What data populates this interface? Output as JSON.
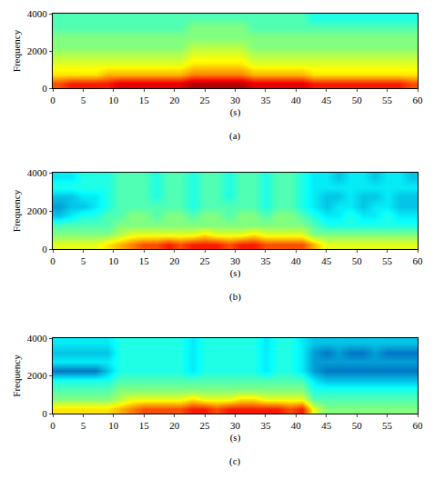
{
  "chart_data": [
    {
      "type": "heatmap",
      "caption": "(a)",
      "xlabel": "(s)",
      "ylabel": "Frequency",
      "x": [
        1,
        3,
        5,
        7,
        9,
        11,
        13,
        15,
        17,
        19,
        21,
        23,
        25,
        27,
        29,
        31,
        33,
        35,
        37,
        39,
        41,
        43,
        45,
        47,
        49,
        51,
        53,
        55,
        57,
        59
      ],
      "y": [
        250,
        750,
        1250,
        1750,
        2250,
        2750,
        3250,
        3750
      ],
      "cells": [
        [
          8,
          8.5,
          8.5,
          8.5,
          8.5,
          9,
          9,
          9,
          9,
          9,
          9,
          9.5,
          9.5,
          9.5,
          9.5,
          9.5,
          9,
          9,
          9,
          9,
          9,
          8.5,
          8.5,
          8.5,
          8.5,
          8.5,
          8.5,
          8.5,
          8.5,
          8
        ],
        [
          6.5,
          6.5,
          6.5,
          6.5,
          7,
          7,
          7,
          7,
          7,
          7,
          7,
          7.5,
          7.5,
          7.5,
          7.5,
          7.5,
          7,
          7,
          7,
          7,
          7,
          6.5,
          6.5,
          6.5,
          6.5,
          6.5,
          6.5,
          6.5,
          6.5,
          6.5
        ],
        [
          6,
          6,
          6,
          6,
          6,
          6,
          6,
          6,
          6,
          6,
          6,
          6.5,
          6.5,
          6.5,
          6.5,
          6.5,
          6,
          6,
          6,
          6,
          6,
          6,
          6,
          6,
          6,
          6,
          6,
          6,
          6,
          6
        ],
        [
          5.5,
          5.5,
          5.5,
          5.5,
          5.5,
          5.5,
          5.5,
          5.5,
          5.5,
          5.5,
          5.5,
          6,
          6,
          6,
          6,
          6,
          5.5,
          5.5,
          5.5,
          5.5,
          5.5,
          5.5,
          5.5,
          5.5,
          5.5,
          5.5,
          5.5,
          5.5,
          5.5,
          5.5
        ],
        [
          5,
          5,
          5,
          5,
          5,
          5,
          5,
          5,
          5,
          5,
          5,
          5.5,
          5.5,
          5.5,
          5.5,
          5.5,
          5,
          5,
          5,
          5,
          5,
          5,
          5,
          5,
          5,
          5,
          5,
          5,
          5,
          5
        ],
        [
          5,
          5,
          5,
          5,
          5,
          5,
          5,
          5,
          5,
          5,
          5,
          5,
          5,
          5,
          5,
          5,
          5,
          5,
          5,
          5,
          5,
          5,
          5,
          5,
          5,
          5,
          5,
          5,
          5,
          5
        ],
        [
          4.5,
          4.5,
          4.5,
          4.5,
          4.5,
          4.5,
          4.5,
          4.5,
          4.5,
          4.5,
          4.5,
          5,
          5,
          5,
          5,
          5,
          4.5,
          4.5,
          4.5,
          4.5,
          4.5,
          4.5,
          4.5,
          4.5,
          4.5,
          4.5,
          4.5,
          4.5,
          4.5,
          4.5
        ],
        [
          4.5,
          4.5,
          4.5,
          4.5,
          4.5,
          4.5,
          4.5,
          4.5,
          4.5,
          4.5,
          4.5,
          4.5,
          4.5,
          4.5,
          4.5,
          4.5,
          4.5,
          4.5,
          4.5,
          4.5,
          4.5,
          4,
          4,
          4,
          4,
          4,
          4,
          4,
          4,
          4
        ]
      ],
      "color_range": [
        0,
        10
      ],
      "xlim": [
        0,
        60
      ],
      "xticks": [
        0,
        5,
        10,
        15,
        20,
        25,
        30,
        35,
        40,
        45,
        50,
        55,
        60
      ],
      "ylim": [
        0,
        4000
      ],
      "yticks": [
        0,
        2000,
        4000
      ]
    },
    {
      "type": "heatmap",
      "caption": "(b)",
      "xlabel": "(s)",
      "ylabel": "Frequency",
      "x": [
        1,
        3,
        5,
        7,
        9,
        11,
        13,
        15,
        17,
        19,
        21,
        23,
        25,
        27,
        29,
        31,
        33,
        35,
        37,
        39,
        41,
        43,
        45,
        47,
        49,
        51,
        53,
        55,
        57,
        59
      ],
      "y": [
        250,
        750,
        1250,
        1750,
        2250,
        2750,
        3250,
        3750
      ],
      "cells": [
        [
          6,
          6,
          6,
          6,
          6.5,
          7,
          7.5,
          8,
          8,
          8.5,
          8,
          8.5,
          8.5,
          8.5,
          8,
          8.5,
          8.5,
          8,
          8,
          8,
          8,
          7,
          6,
          6,
          6,
          6,
          6,
          6,
          6,
          6
        ],
        [
          5,
          5,
          5,
          5,
          5,
          5.5,
          6,
          6,
          6,
          6,
          6,
          6,
          6.5,
          6,
          6,
          6,
          6.5,
          6,
          6,
          6,
          6,
          5,
          5,
          5,
          5,
          5,
          5,
          5,
          5,
          5
        ],
        [
          4.5,
          4.5,
          4.5,
          4.5,
          4.5,
          5,
          5,
          5,
          5,
          5,
          5,
          5,
          5,
          5,
          5,
          5,
          5,
          5,
          5,
          5,
          5,
          4.5,
          4,
          4,
          4,
          4,
          4,
          4,
          4,
          4
        ],
        [
          3,
          3.5,
          4,
          4,
          4.5,
          4.5,
          5,
          5,
          4.5,
          5,
          5,
          4.5,
          5,
          5,
          4.5,
          5,
          5,
          4.5,
          5,
          5,
          4.5,
          4,
          3.5,
          3.5,
          4,
          3.5,
          3.5,
          4,
          3.5,
          3.5
        ],
        [
          2.5,
          3,
          3,
          3.5,
          4,
          4.5,
          4.5,
          4.5,
          4.5,
          4.5,
          4.5,
          4,
          4.5,
          4.5,
          4.5,
          4.5,
          4.5,
          4,
          4.5,
          4.5,
          4,
          3.5,
          3,
          3.5,
          3.5,
          3,
          3.5,
          3.5,
          3,
          3
        ],
        [
          3,
          3,
          3.5,
          3.5,
          4,
          4.5,
          4.5,
          4.5,
          4,
          4.5,
          4.5,
          4,
          4.5,
          4.5,
          4,
          4.5,
          4.5,
          4,
          4.5,
          4.5,
          4,
          3.5,
          3,
          3,
          3.5,
          3,
          3,
          3.5,
          3,
          3
        ],
        [
          4,
          4,
          4,
          4,
          4,
          4.5,
          4.5,
          4.5,
          4,
          4.5,
          4.5,
          4,
          4.5,
          4.5,
          4,
          4.5,
          4.5,
          4,
          4.5,
          4.5,
          4,
          3.5,
          3.5,
          3.5,
          3.5,
          3.5,
          3.5,
          3.5,
          3.5,
          3.5
        ],
        [
          3.5,
          3.5,
          4,
          4,
          4,
          4.5,
          4.5,
          4.5,
          4,
          4.5,
          4.5,
          4,
          4.5,
          4.5,
          4,
          4.5,
          4.5,
          4,
          4.5,
          4.5,
          4,
          3.5,
          3.5,
          3,
          3.5,
          3.5,
          3,
          3.5,
          3.5,
          3
        ]
      ],
      "color_range": [
        0,
        10
      ],
      "xlim": [
        0,
        60
      ],
      "xticks": [
        0,
        5,
        10,
        15,
        20,
        25,
        30,
        35,
        40,
        45,
        50,
        55,
        60
      ],
      "ylim": [
        0,
        4000
      ],
      "yticks": [
        0,
        2000,
        4000
      ]
    },
    {
      "type": "heatmap",
      "caption": "(c)",
      "xlabel": "(s)",
      "ylabel": "Frequency",
      "x": [
        1,
        3,
        5,
        7,
        9,
        11,
        13,
        15,
        17,
        19,
        21,
        23,
        25,
        27,
        29,
        31,
        33,
        35,
        37,
        39,
        41,
        43,
        45,
        47,
        49,
        51,
        53,
        55,
        57,
        59
      ],
      "y": [
        250,
        750,
        1250,
        1750,
        2250,
        2750,
        3250,
        3750
      ],
      "cells": [
        [
          6.5,
          6.5,
          6.5,
          6.5,
          6.5,
          7,
          7.5,
          8,
          8,
          8,
          8,
          8.5,
          8.5,
          8,
          8.5,
          8.5,
          8.5,
          8.5,
          8.5,
          8,
          8.5,
          6,
          5,
          5,
          5,
          5,
          5,
          5,
          5,
          5
        ],
        [
          5,
          5,
          5,
          5,
          5,
          5.5,
          6,
          6,
          6,
          6,
          6,
          6.5,
          6,
          6,
          6,
          6.5,
          6.5,
          6,
          6,
          6,
          6,
          4.5,
          4.5,
          4.5,
          4.5,
          4.5,
          4.5,
          4.5,
          4.5,
          4.5
        ],
        [
          4.5,
          4.5,
          4.5,
          4.5,
          4.5,
          5,
          5,
          5,
          5,
          5,
          5,
          5,
          5,
          5,
          5,
          5,
          5,
          5,
          5,
          5,
          5,
          4,
          4,
          4,
          4,
          4,
          4,
          4,
          4,
          4
        ],
        [
          4,
          4,
          4,
          4,
          4,
          4.5,
          4.5,
          4.5,
          4.5,
          4.5,
          4.5,
          4.5,
          4.5,
          4.5,
          4.5,
          4.5,
          4.5,
          4.5,
          4.5,
          4.5,
          4.5,
          3.5,
          3,
          3,
          3,
          3,
          3,
          3,
          3,
          3
        ],
        [
          2,
          2,
          2,
          2,
          3,
          4,
          4,
          4,
          4,
          4,
          4,
          3.5,
          4,
          4,
          4,
          4,
          4,
          3.5,
          4,
          4,
          3.5,
          2.5,
          2,
          2,
          2,
          2,
          2,
          2,
          2,
          2
        ],
        [
          3.5,
          3.5,
          3.5,
          3.5,
          3.5,
          4,
          4,
          4,
          4,
          4,
          4,
          3.5,
          4,
          4,
          4,
          4,
          4,
          3.5,
          4,
          4,
          3.5,
          2.5,
          2.5,
          2.5,
          2.5,
          2.5,
          2.5,
          2.5,
          2.5,
          2.5
        ],
        [
          3,
          3,
          3,
          3,
          3,
          4,
          4,
          4,
          4,
          4,
          4,
          3.5,
          4,
          4,
          4,
          4,
          4,
          3.5,
          4,
          4,
          3.5,
          2.5,
          2,
          2.5,
          2,
          2,
          2.5,
          2,
          2,
          2
        ],
        [
          3.5,
          3.5,
          3.5,
          3.5,
          3.5,
          4,
          4,
          4,
          4,
          4,
          4,
          3.5,
          4,
          4,
          4,
          4,
          4,
          3.5,
          4,
          4,
          3.5,
          3,
          3,
          3,
          3,
          3,
          3,
          3,
          3,
          3
        ]
      ],
      "color_range": [
        0,
        10
      ],
      "xlim": [
        0,
        60
      ],
      "xticks": [
        0,
        5,
        10,
        15,
        20,
        25,
        30,
        35,
        40,
        45,
        50,
        55,
        60
      ],
      "ylim": [
        0,
        4000
      ],
      "yticks": [
        0,
        2000,
        4000
      ]
    }
  ]
}
